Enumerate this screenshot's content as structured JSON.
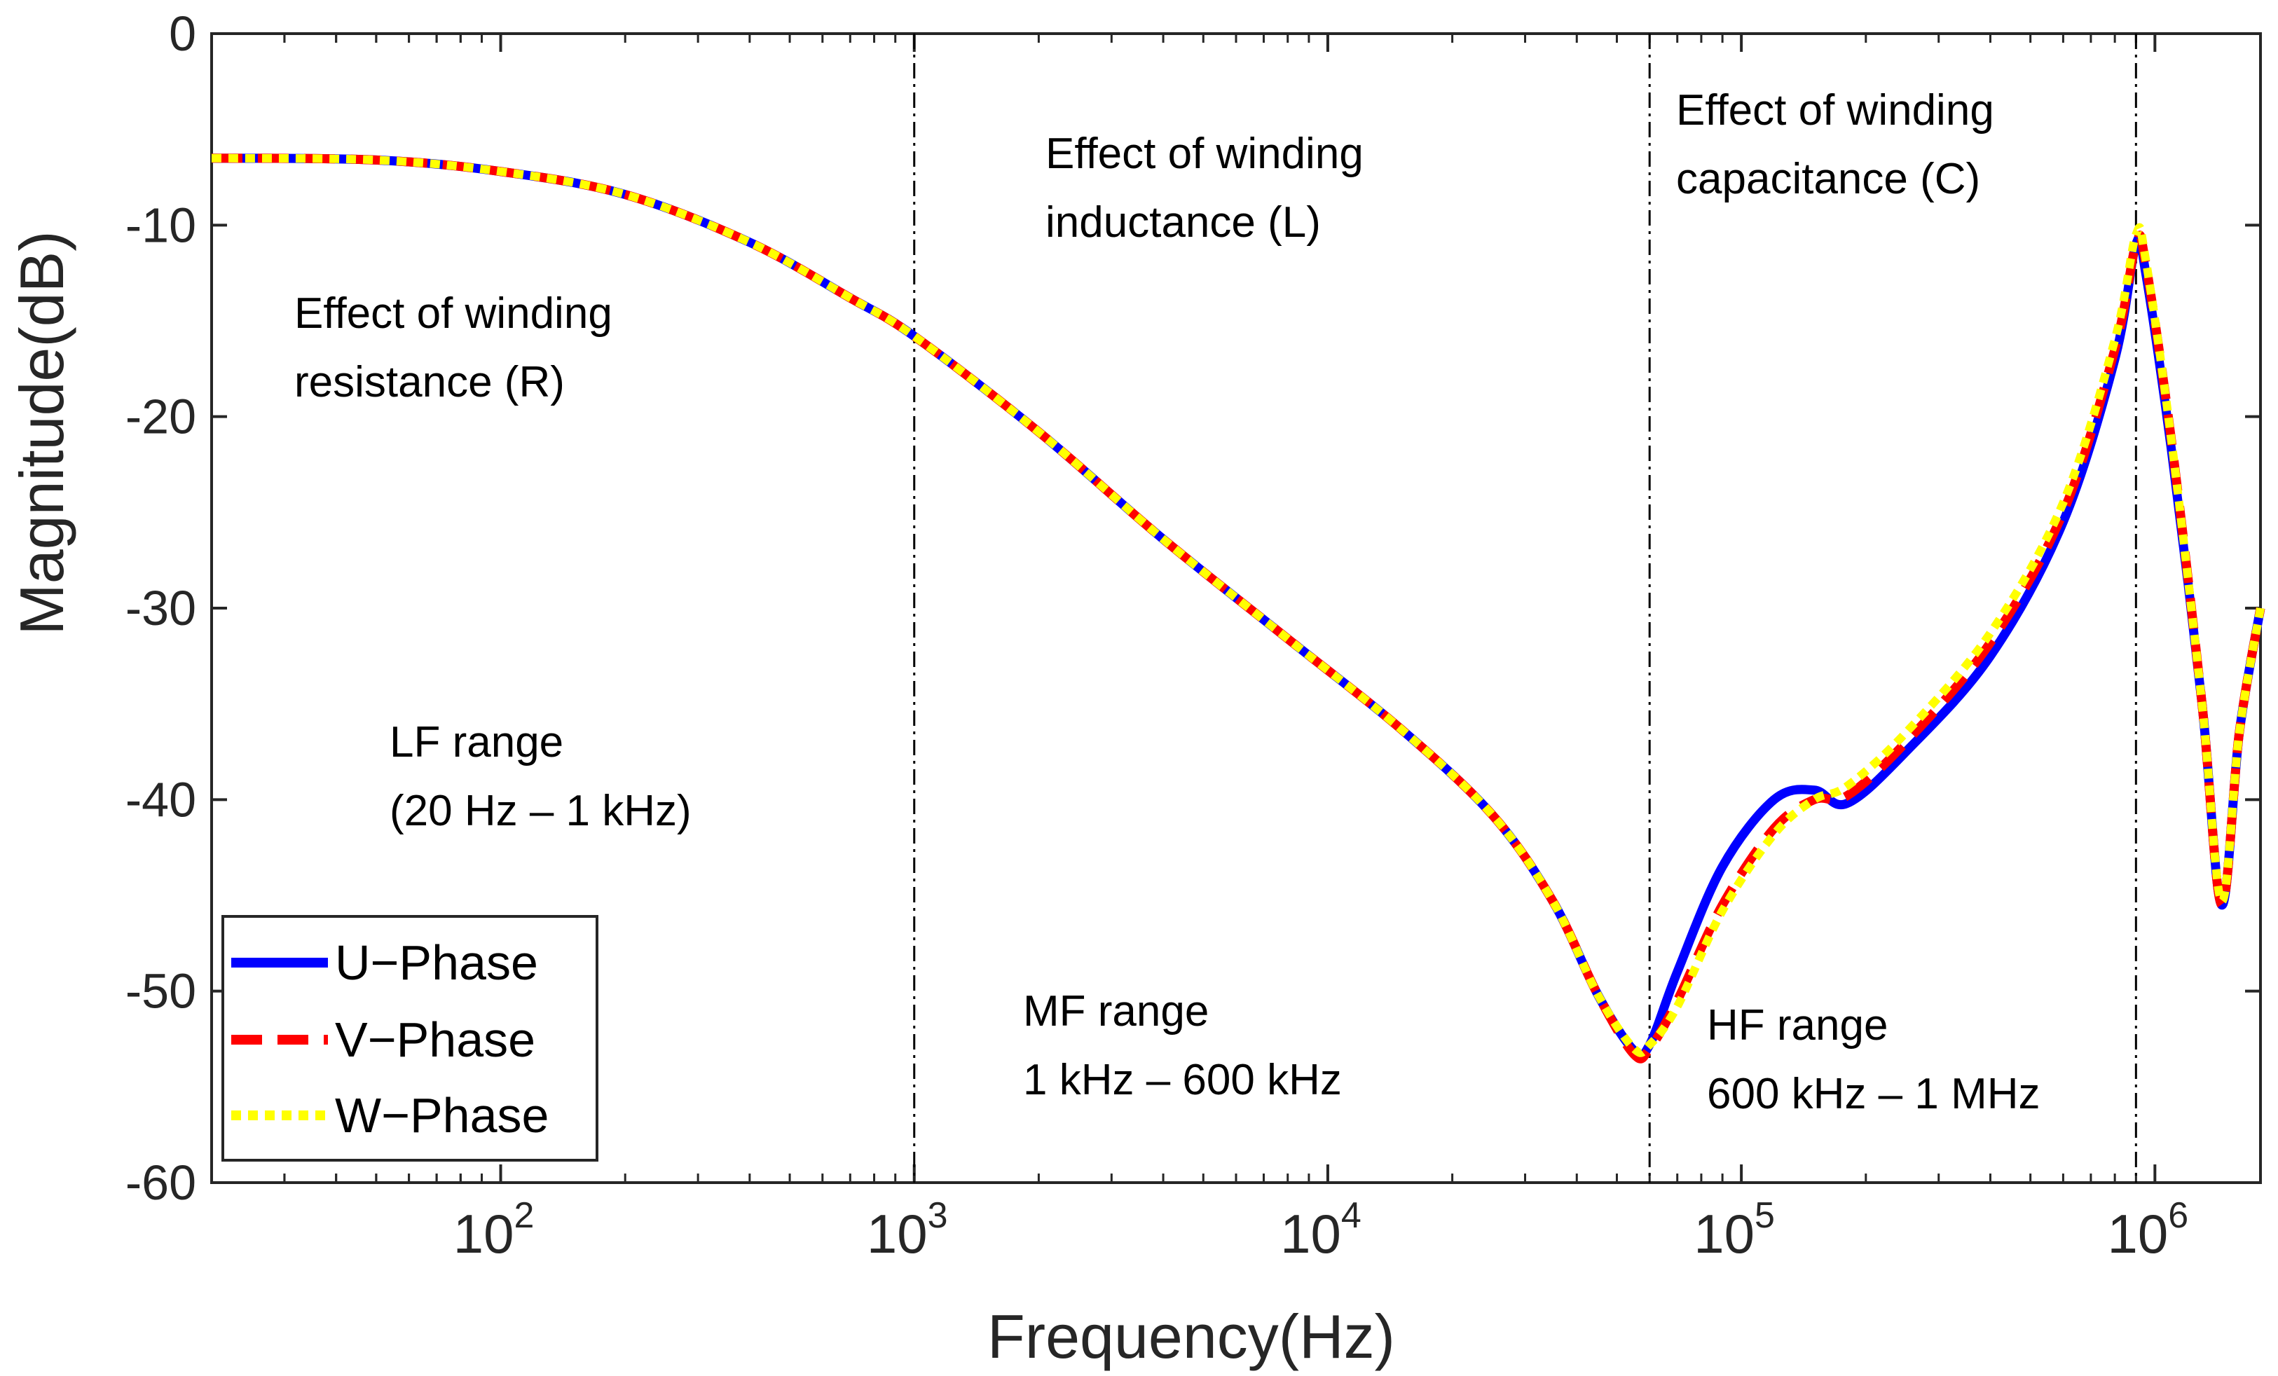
{
  "chart_data": {
    "type": "line",
    "xscale": "log",
    "xlabel": "Frequency(Hz)",
    "ylabel": "Magnitude(dB)",
    "xlim": [
      20,
      1800000
    ],
    "ylim": [
      -60,
      0
    ],
    "yticks": [
      0,
      -10,
      -20,
      -30,
      -40,
      -50,
      -60
    ],
    "xticks": [
      {
        "value": 100,
        "base": "10",
        "exp": "2"
      },
      {
        "value": 1000,
        "base": "10",
        "exp": "3"
      },
      {
        "value": 10000,
        "base": "10",
        "exp": "4"
      },
      {
        "value": 100000,
        "base": "10",
        "exp": "5"
      },
      {
        "value": 1000000,
        "base": "10",
        "exp": "6"
      }
    ],
    "vlines": [
      1000,
      60000,
      900000
    ],
    "series": [
      {
        "name": "U-Phase",
        "color": "#0000ff",
        "dash": "solid",
        "x": [
          20,
          50,
          100,
          200,
          400,
          700,
          1000,
          2000,
          4000,
          8000,
          15000,
          25000,
          35000,
          45000,
          55000,
          60000,
          70000,
          90000,
          120000,
          150000,
          180000,
          250000,
          400000,
          600000,
          800000,
          900000,
          950000,
          1100000,
          1300000,
          1450000,
          1600000,
          1800000
        ],
        "y": [
          -6.5,
          -6.6,
          -7.2,
          -8.4,
          -10.9,
          -13.8,
          -15.8,
          -20.8,
          -26.4,
          -31.6,
          -36.3,
          -40.8,
          -45.3,
          -50.2,
          -53.1,
          -52.8,
          -49.0,
          -43.5,
          -40.0,
          -39.5,
          -40.2,
          -37.5,
          -32.5,
          -25.5,
          -17.0,
          -11.0,
          -12.5,
          -22.0,
          -35.0,
          -45.5,
          -36.5,
          -30.0
        ]
      },
      {
        "name": "V-Phase",
        "color": "#ff0000",
        "dash": "dashed",
        "x": [
          20,
          50,
          100,
          200,
          400,
          700,
          1000,
          2000,
          4000,
          8000,
          15000,
          25000,
          35000,
          45000,
          55000,
          60000,
          70000,
          90000,
          120000,
          150000,
          180000,
          250000,
          400000,
          600000,
          800000,
          900000,
          950000,
          1100000,
          1300000,
          1450000,
          1600000,
          1800000
        ],
        "y": [
          -6.5,
          -6.6,
          -7.2,
          -8.4,
          -10.9,
          -13.8,
          -15.8,
          -20.8,
          -26.4,
          -31.6,
          -36.3,
          -40.8,
          -45.3,
          -50.2,
          -53.3,
          -53.0,
          -50.5,
          -45.5,
          -41.5,
          -40.0,
          -39.8,
          -37.0,
          -31.8,
          -25.0,
          -16.5,
          -11.0,
          -12.0,
          -21.5,
          -35.0,
          -45.5,
          -36.5,
          -30.0
        ]
      },
      {
        "name": "W-Phase",
        "color": "#ffff00",
        "dash": "dotted",
        "x": [
          20,
          50,
          100,
          200,
          400,
          700,
          1000,
          2000,
          4000,
          8000,
          15000,
          25000,
          35000,
          45000,
          55000,
          60000,
          70000,
          90000,
          120000,
          150000,
          180000,
          250000,
          400000,
          600000,
          800000,
          900000,
          950000,
          1100000,
          1300000,
          1450000,
          1600000,
          1800000
        ],
        "y": [
          -6.5,
          -6.6,
          -7.2,
          -8.4,
          -10.9,
          -13.8,
          -15.8,
          -20.8,
          -26.4,
          -31.6,
          -36.3,
          -40.8,
          -45.3,
          -50.2,
          -53.0,
          -52.8,
          -50.8,
          -45.8,
          -41.8,
          -40.0,
          -39.3,
          -36.5,
          -31.3,
          -24.5,
          -16.0,
          -10.5,
          -11.8,
          -21.5,
          -35.0,
          -45.3,
          -36.5,
          -30.0
        ]
      }
    ]
  },
  "annotations": {
    "resistance_line1": "Effect of winding",
    "resistance_line2": "resistance (R)",
    "inductance_line1": "Effect of winding",
    "inductance_line2": "inductance (L)",
    "capacitance_line1": "Effect of winding",
    "capacitance_line2": "capacitance (C)",
    "lf_line1": "LF range",
    "lf_line2": "(20 Hz – 1 kHz)",
    "mf_line1": "MF range",
    "mf_line2": "1 kHz – 600 kHz",
    "hf_line1": "HF range",
    "hf_line2": "600 kHz – 1 MHz"
  },
  "legend": {
    "u_label": "U−Phase",
    "v_label": "V−Phase",
    "w_label": "W−Phase"
  }
}
